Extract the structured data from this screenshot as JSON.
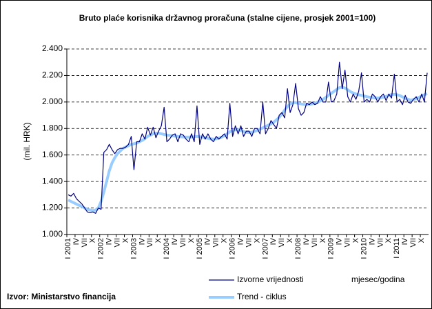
{
  "chart_data": {
    "type": "line",
    "title": "Bruto plaće korisnika državnog proračuna (stalne cijene, prosjek 2001=100)",
    "y_label": "(mil. HRK)",
    "x_label": "mjesec/godina",
    "source": "Izvor: Ministarstvo financija",
    "categories": [
      "I 2001",
      null,
      null,
      "IV",
      null,
      null,
      "VII",
      null,
      null,
      "X",
      null,
      null,
      "I 2002",
      null,
      null,
      "IV",
      null,
      null,
      "VII",
      null,
      null,
      "X",
      null,
      null,
      "I 2003",
      null,
      null,
      "IV",
      null,
      null,
      "VII",
      null,
      null,
      "X",
      null,
      null,
      "I 2004",
      null,
      null,
      "IV",
      null,
      null,
      "VII",
      null,
      null,
      "X",
      null,
      null,
      "I 2005",
      null,
      null,
      "IV",
      null,
      null,
      "VII",
      null,
      null,
      "X",
      null,
      null,
      "I 2006",
      null,
      null,
      "IV",
      null,
      null,
      "VII",
      null,
      null,
      "X",
      null,
      null,
      "I 2007",
      null,
      null,
      "IV",
      null,
      null,
      "VII",
      null,
      null,
      "X",
      null,
      null,
      "I 2008",
      null,
      null,
      "IV",
      null,
      null,
      "VII",
      null,
      null,
      "X",
      null,
      null,
      "I 2009",
      null,
      null,
      "IV",
      null,
      null,
      "VII",
      null,
      null,
      "X",
      null,
      null,
      "I 2010",
      null,
      null,
      "IV",
      null,
      null,
      "VII",
      null,
      null,
      "X",
      null,
      null,
      "I 2011",
      null,
      null,
      "IV",
      null,
      null,
      "VII",
      null,
      null,
      "X",
      null,
      null
    ],
    "series": [
      {
        "name": "Izvorne vrijednosti",
        "color": "#000080",
        "width": 1.2,
        "values": [
          1300,
          1290,
          1310,
          1270,
          1250,
          1230,
          1200,
          1170,
          1165,
          1170,
          1160,
          1200,
          1190,
          1620,
          1640,
          1680,
          1640,
          1610,
          1640,
          1650,
          1650,
          1660,
          1680,
          1740,
          1490,
          1700,
          1700,
          1760,
          1720,
          1810,
          1750,
          1810,
          1730,
          1780,
          1820,
          1960,
          1700,
          1720,
          1750,
          1760,
          1700,
          1760,
          1750,
          1720,
          1700,
          1760,
          1700,
          1970,
          1680,
          1760,
          1720,
          1760,
          1720,
          1700,
          1740,
          1720,
          1740,
          1760,
          1720,
          1990,
          1740,
          1820,
          1760,
          1820,
          1740,
          1780,
          1780,
          1740,
          1800,
          1800,
          1760,
          2000,
          1760,
          1800,
          1860,
          1830,
          1800,
          1900,
          1920,
          1880,
          2100,
          1920,
          1980,
          2140,
          1950,
          1900,
          1920,
          1990,
          1980,
          2000,
          1980,
          1990,
          2040,
          2000,
          2000,
          2150,
          2000,
          2010,
          2060,
          2300,
          2100,
          2240,
          2040,
          2000,
          2060,
          2020,
          2080,
          2220,
          2000,
          2020,
          2000,
          2060,
          2040,
          2000,
          2040,
          2060,
          2010,
          2060,
          2030,
          2210,
          2000,
          2020,
          1980,
          2050,
          2000,
          1990,
          2020,
          2040,
          2000,
          2060,
          2000,
          2220
        ]
      },
      {
        "name": "Trend - ciklus",
        "color": "#99ccff",
        "width": 4,
        "values": [
          1260,
          1250,
          1240,
          1230,
          1220,
          1210,
          1200,
          1190,
          1185,
          1180,
          1185,
          1200,
          1250,
          1320,
          1400,
          1480,
          1540,
          1580,
          1610,
          1630,
          1650,
          1660,
          1670,
          1680,
          1685,
          1690,
          1700,
          1710,
          1725,
          1740,
          1750,
          1760,
          1765,
          1765,
          1760,
          1755,
          1750,
          1748,
          1745,
          1742,
          1740,
          1738,
          1736,
          1735,
          1735,
          1736,
          1738,
          1740,
          1738,
          1735,
          1730,
          1725,
          1722,
          1720,
          1722,
          1728,
          1735,
          1745,
          1760,
          1775,
          1785,
          1790,
          1790,
          1785,
          1778,
          1772,
          1770,
          1772,
          1778,
          1785,
          1795,
          1805,
          1815,
          1825,
          1835,
          1848,
          1865,
          1885,
          1910,
          1940,
          1965,
          1985,
          1995,
          1995,
          1990,
          1985,
          1982,
          1980,
          1982,
          1985,
          1990,
          1998,
          2008,
          2020,
          2035,
          2050,
          2065,
          2080,
          2095,
          2108,
          2112,
          2105,
          2092,
          2078,
          2068,
          2060,
          2055,
          2050,
          2045,
          2040,
          2036,
          2033,
          2030,
          2030,
          2032,
          2036,
          2042,
          2050,
          2056,
          2058,
          2055,
          2048,
          2038,
          2028,
          2020,
          2015,
          2018,
          2025,
          2035,
          2045,
          2055,
          2062
        ]
      }
    ],
    "ylim": [
      1000,
      2400
    ],
    "yticks": [
      {
        "value": 1000,
        "label": "1.000"
      },
      {
        "value": 1200,
        "label": "1.200"
      },
      {
        "value": 1400,
        "label": "1.400"
      },
      {
        "value": 1600,
        "label": "1.600"
      },
      {
        "value": 1800,
        "label": "1.800"
      },
      {
        "value": 2000,
        "label": "2.000"
      },
      {
        "value": 2200,
        "label": "2.200"
      },
      {
        "value": 2400,
        "label": "2.400"
      }
    ],
    "grid": true
  }
}
